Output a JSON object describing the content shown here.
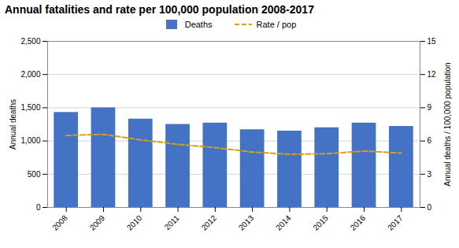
{
  "chart_data": {
    "type": "bar",
    "title": "Annual fatalities and rate per 100,000 population 2008-2017",
    "x": [
      2008,
      2009,
      2010,
      2011,
      2012,
      2013,
      2014,
      2015,
      2016,
      2017
    ],
    "xlim": [
      2007.5,
      2017.5
    ],
    "xticks": [
      2008,
      2009,
      2010,
      2011,
      2012,
      2013,
      2014,
      2015,
      2016,
      2017
    ],
    "ylim": [
      0,
      2500
    ],
    "yticks": [
      0,
      500,
      {
        "value": 1000,
        "label": "1,000"
      },
      {
        "value": 1500,
        "label": "1,500"
      },
      {
        "value": 2000,
        "label": "2,000"
      },
      {
        "value": 2500,
        "label": "2,500"
      }
    ],
    "y2lim": [
      0,
      15
    ],
    "y2ticks": [
      0,
      3,
      6,
      9,
      12,
      15
    ],
    "ylabel": "Annual deaths",
    "y2label": "Annual deaths / 100,000 population",
    "grid": true,
    "series": [
      {
        "name": "Deaths",
        "type": "bar",
        "color": "#4472C4",
        "values": [
          1430,
          1500,
          1330,
          1250,
          1270,
          1170,
          1150,
          1200,
          1270,
          1220
        ]
      },
      {
        "name": "Rate / pop",
        "type": "line",
        "axis": "y2",
        "color": "#D4A017",
        "line_style": "dashed",
        "values": [
          6.5,
          6.6,
          6.1,
          5.7,
          5.4,
          5.0,
          4.8,
          4.85,
          5.1,
          4.9
        ]
      }
    ]
  }
}
